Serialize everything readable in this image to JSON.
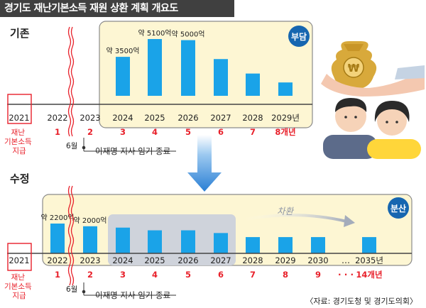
{
  "title": "경기도 재난기본소득 재원 상환 계획 개요도",
  "source": "〈자료: 경기도청 및 경기도의회〉",
  "colors": {
    "bar": "#1aa3e8",
    "panel_fill": "#fdf6d3",
    "panel_stroke": "#8b8b8b",
    "red": "#e8202a",
    "badge": "#1666b0",
    "shade": "#cfd3db",
    "arrow": "#2a7fd4",
    "title_bg": "#404040"
  },
  "chart_data": [
    {
      "id": "original",
      "type": "bar",
      "section_label": "기존",
      "badge": "부담",
      "unit": "억",
      "categories": [
        "2024",
        "2025",
        "2026",
        "2027",
        "2028",
        "2029년"
      ],
      "values": [
        3500,
        5100,
        5000,
        3300,
        2000,
        1200
      ],
      "data_labels": [
        "약 3500억",
        "약 5100억",
        "약 5000억",
        "",
        "",
        ""
      ],
      "axis_years": [
        "2021",
        "2022",
        "2023",
        "2024",
        "2025",
        "2026",
        "2027",
        "2028",
        "2029년"
      ],
      "year_counts": [
        "",
        "1",
        "2",
        "3",
        "4",
        "5",
        "6",
        "7",
        "8개년"
      ],
      "start_label": "재난\n기본소득\n지급",
      "month_label": "6월",
      "event_label": "이재명 지사 임기 종료",
      "ylim": [
        0,
        5100
      ]
    },
    {
      "id": "revised",
      "type": "bar",
      "section_label": "수정",
      "badge": "분산",
      "unit": "억",
      "categories": [
        "2022",
        "2023",
        "2024",
        "2025",
        "2026",
        "2027",
        "2028",
        "2029",
        "2030",
        "2035년"
      ],
      "values": [
        2200,
        2000,
        1900,
        1700,
        1700,
        1500,
        1200,
        1200,
        1200,
        1200
      ],
      "data_labels": [
        "약 2200억",
        "약 2000억",
        "",
        "",
        "",
        "",
        "",
        "",
        "",
        ""
      ],
      "axis_years": [
        "2021",
        "2022",
        "2023",
        "2024",
        "2025",
        "2026",
        "2027",
        "2028",
        "2029",
        "2030",
        "2035년"
      ],
      "year_counts": [
        "",
        "1",
        "2",
        "3",
        "4",
        "5",
        "6",
        "7",
        "8",
        "9",
        "14개년"
      ],
      "ellipsis": "…",
      "count_ellipsis": "· · ·",
      "shift_label": "차환",
      "start_label": "재난\n기본소득\n지급",
      "month_label": "6월",
      "event_label": "이재명 지사 임기 종료",
      "ylim": [
        0,
        2200
      ]
    }
  ]
}
